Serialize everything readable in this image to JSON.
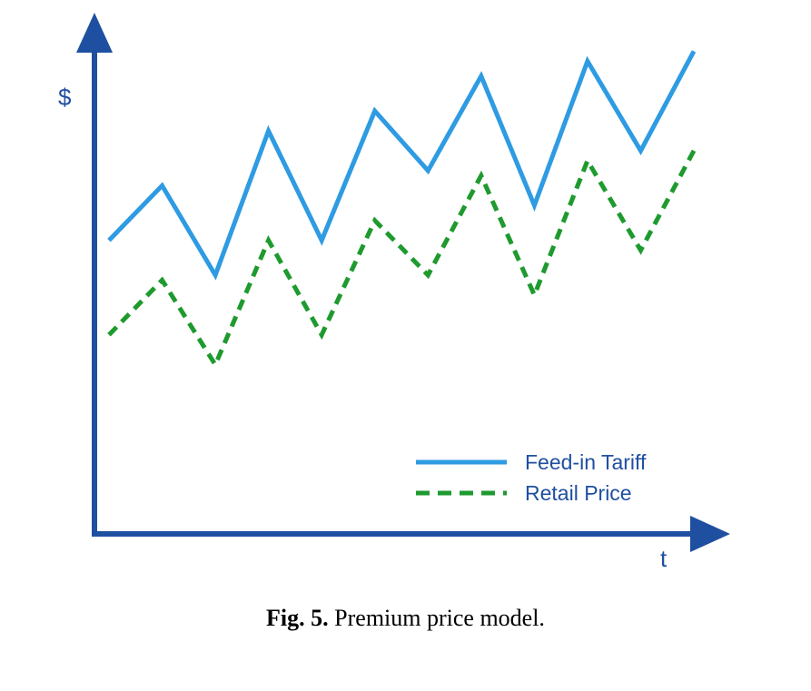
{
  "caption": {
    "label": "Fig. 5.",
    "text": "Premium price model."
  },
  "colors": {
    "axis": "#1f4fa0",
    "text": "#1f4fa0"
  },
  "chart_data": {
    "type": "line",
    "title": "",
    "xlabel": "t",
    "ylabel": "$",
    "x": [
      0,
      1,
      2,
      3,
      4,
      5,
      6,
      7,
      8,
      9,
      10,
      11
    ],
    "ylim": [
      0,
      10
    ],
    "grid": false,
    "legend_position": "bottom-right",
    "series": [
      {
        "name": "Feed-in Tariff",
        "color": "#2e9be2",
        "style": "solid",
        "values": [
          5.9,
          7.0,
          5.2,
          8.1,
          5.9,
          8.5,
          7.3,
          9.2,
          6.6,
          9.5,
          7.7,
          9.7
        ]
      },
      {
        "name": "Retail Price",
        "color": "#1e9a2e",
        "style": "dashed",
        "values": [
          4.0,
          5.1,
          3.4,
          5.9,
          4.0,
          6.3,
          5.2,
          7.2,
          4.8,
          7.5,
          5.7,
          7.7
        ]
      }
    ]
  }
}
